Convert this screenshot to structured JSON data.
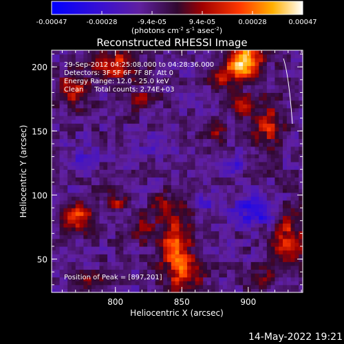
{
  "chart_data": {
    "type": "heatmap",
    "title": "Reconstructed RHESSI Image",
    "xlabel": "Heliocentric X (arcsec)",
    "ylabel": "Heliocentric Y (arcsec)",
    "xlim": [
      752,
      941
    ],
    "ylim": [
      24,
      213
    ],
    "x_ticks": [
      800,
      850,
      900
    ],
    "y_ticks": [
      50,
      100,
      150,
      200
    ],
    "colorbar": {
      "ticks": [
        "-0.00047",
        "-0.00028",
        "-9.4e-05",
        "9.4e-05",
        "0.00028",
        "0.00047"
      ],
      "range": [
        -0.00047,
        0.00047
      ],
      "units_html": "(photons cm<tspan dy='-4' font-size='7'>-2</tspan><tspan dy='4'> s</tspan><tspan dy='-4' font-size='7'>-1</tspan><tspan dy='4'> asec</tspan><tspan dy='-4' font-size='7'>-2</tspan><tspan dy='4'>)</tspan>"
    },
    "annotations": [
      "29-Sep-2012 04:25:08.000 to 04:28:36.000",
      "Detectors: 3F 5F 6F 7F 8F, Att 0",
      "Energy Range: 12.0 - 25.0 keV",
      "Clean     Total counts: 2.74E+03"
    ],
    "peak_label": "Position of Peak = [897,201]",
    "peak": [
      897,
      201
    ],
    "hot_spots": [
      {
        "x": 897,
        "y": 205,
        "amp": 1.0,
        "sx": 9,
        "sy": 9
      },
      {
        "x": 880,
        "y": 192,
        "amp": 0.45,
        "sx": 8,
        "sy": 6
      },
      {
        "x": 800,
        "y": 202,
        "amp": 0.55,
        "sx": 12,
        "sy": 8
      },
      {
        "x": 768,
        "y": 183,
        "amp": 0.45,
        "sx": 8,
        "sy": 10
      },
      {
        "x": 820,
        "y": 175,
        "amp": 0.35,
        "sx": 8,
        "sy": 5
      },
      {
        "x": 915,
        "y": 155,
        "amp": 0.45,
        "sx": 8,
        "sy": 14
      },
      {
        "x": 895,
        "y": 170,
        "amp": 0.35,
        "sx": 6,
        "sy": 6
      },
      {
        "x": 875,
        "y": 150,
        "amp": 0.3,
        "sx": 5,
        "sy": 6
      },
      {
        "x": 845,
        "y": 65,
        "amp": 0.55,
        "sx": 8,
        "sy": 18
      },
      {
        "x": 852,
        "y": 40,
        "amp": 0.5,
        "sx": 9,
        "sy": 10
      },
      {
        "x": 835,
        "y": 93,
        "amp": 0.35,
        "sx": 5,
        "sy": 6
      },
      {
        "x": 770,
        "y": 83,
        "amp": 0.55,
        "sx": 9,
        "sy": 7
      },
      {
        "x": 800,
        "y": 95,
        "amp": 0.4,
        "sx": 6,
        "sy": 6
      },
      {
        "x": 820,
        "y": 75,
        "amp": 0.35,
        "sx": 6,
        "sy": 8
      },
      {
        "x": 930,
        "y": 65,
        "amp": 0.5,
        "sx": 9,
        "sy": 14
      },
      {
        "x": 910,
        "y": 35,
        "amp": 0.3,
        "sx": 8,
        "sy": 6
      },
      {
        "x": 780,
        "y": 35,
        "amp": 0.25,
        "sx": 8,
        "sy": 5
      }
    ],
    "cold_spots": [
      {
        "x": 905,
        "y": 88,
        "amp": 0.5,
        "sx": 10,
        "sy": 8
      },
      {
        "x": 888,
        "y": 125,
        "amp": 0.35,
        "sx": 6,
        "sy": 5
      },
      {
        "x": 830,
        "y": 140,
        "amp": 0.25,
        "sx": 7,
        "sy": 6
      },
      {
        "x": 870,
        "y": 95,
        "amp": 0.25,
        "sx": 6,
        "sy": 6
      },
      {
        "x": 775,
        "y": 130,
        "amp": 0.2,
        "sx": 8,
        "sy": 8
      }
    ]
  },
  "footer": {
    "date": "14-May-2022 19:21"
  }
}
